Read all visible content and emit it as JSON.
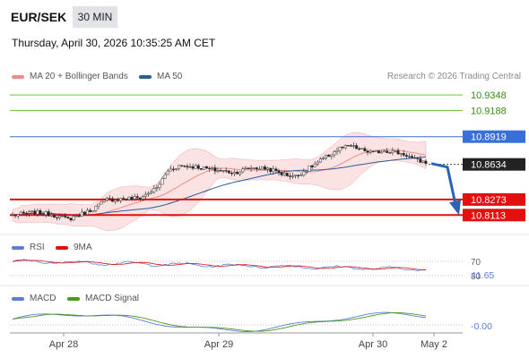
{
  "header": {
    "symbol": "EUR/SEK",
    "timeframe": "30 MIN",
    "datetime": "Thursday, April 30, 2026 10:35:25 AM CET",
    "credit": "Research © 2026 Trading Central"
  },
  "legend": {
    "ma20": {
      "label": "MA 20 + Bollinger Bands",
      "color": "#f08a8a"
    },
    "ma50": {
      "label": "MA 50",
      "color": "#2a5b9a"
    },
    "rsi": {
      "label": "RSI",
      "color": "#5b7fd6"
    },
    "rsi9": {
      "label": "9MA",
      "color": "#e01010"
    },
    "macd": {
      "label": "MACD",
      "color": "#5b7fd6"
    },
    "signal": {
      "label": "MACD Signal",
      "color": "#4a9a1a"
    }
  },
  "colors": {
    "green_level": "#7ac143",
    "blue_level": "#3a6fd8",
    "red_level": "#e31010",
    "bull": "#ffffff",
    "bear": "#222222",
    "band_fill": "#f9d9d9",
    "arrow": "#2a62b8"
  },
  "chart_data": [
    {
      "type": "candlestick",
      "panel": "price",
      "ylim": [
        10.795,
        10.945
      ],
      "levels": [
        {
          "label": "10.9348",
          "value": 10.9348,
          "kind": "resistance"
        },
        {
          "label": "10.9188",
          "value": 10.9188,
          "kind": "resistance"
        },
        {
          "label": "10.8919",
          "value": 10.8919,
          "kind": "pivot"
        },
        {
          "label": "10.8634",
          "value": 10.8634,
          "kind": "last"
        },
        {
          "label": "10.8273",
          "value": 10.8273,
          "kind": "support"
        },
        {
          "label": "10.8113",
          "value": 10.8113,
          "kind": "support"
        }
      ],
      "last_price": "10.8634",
      "forecast_target": 10.8113,
      "x_labels": [
        "Apr 28",
        "Apr 29",
        "Apr 30",
        "May 2"
      ],
      "path_points": [
        [
          0,
          10.811
        ],
        [
          8,
          10.814
        ],
        [
          14,
          10.812
        ],
        [
          20,
          10.807
        ],
        [
          28,
          10.816
        ],
        [
          34,
          10.827
        ],
        [
          40,
          10.828
        ],
        [
          46,
          10.829
        ],
        [
          52,
          10.839
        ],
        [
          56,
          10.857
        ],
        [
          60,
          10.862
        ],
        [
          66,
          10.861
        ],
        [
          72,
          10.858
        ],
        [
          80,
          10.855
        ],
        [
          86,
          10.86
        ],
        [
          92,
          10.859
        ],
        [
          98,
          10.853
        ],
        [
          102,
          10.851
        ],
        [
          106,
          10.858
        ],
        [
          112,
          10.869
        ],
        [
          118,
          10.88
        ],
        [
          122,
          10.882
        ],
        [
          126,
          10.878
        ],
        [
          130,
          10.875
        ],
        [
          134,
          10.878
        ],
        [
          138,
          10.876
        ],
        [
          142,
          10.873
        ],
        [
          145,
          10.868
        ],
        [
          148,
          10.866
        ]
      ]
    },
    {
      "type": "line",
      "panel": "rsi",
      "series": [
        {
          "name": "RSI"
        },
        {
          "name": "9MA"
        }
      ],
      "ylim": [
        20,
        80
      ],
      "levels": [
        {
          "label": "70",
          "value": 70
        },
        {
          "label": "30",
          "value": 30
        }
      ],
      "last_value": "41.65"
    },
    {
      "type": "line",
      "panel": "macd",
      "series": [
        {
          "name": "MACD"
        },
        {
          "name": "MACD Signal"
        }
      ],
      "last_value": "-0.00"
    }
  ]
}
